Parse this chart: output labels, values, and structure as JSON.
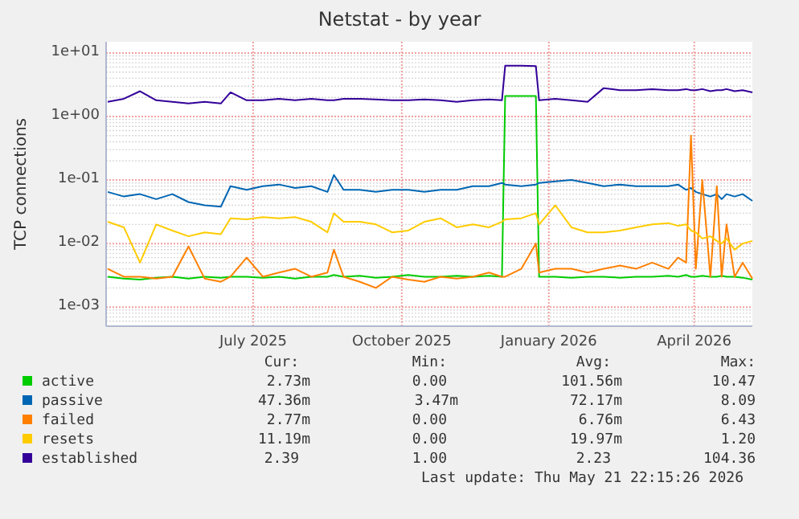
{
  "chart_data": {
    "type": "line",
    "title": "Netstat - by year",
    "ylabel": "TCP connections",
    "log": true,
    "grid": true,
    "legend": "bottom",
    "marker": "none",
    "line_style": "solid",
    "ylim": [
      0.0005,
      15
    ],
    "yticks": [
      {
        "value": 0.001,
        "label": "1e-03"
      },
      {
        "value": 0.01,
        "label": "1e-02"
      },
      {
        "value": 0.1,
        "label": "1e-01"
      },
      {
        "value": 1,
        "label": "1e+00"
      },
      {
        "value": 10,
        "label": "1e+01"
      }
    ],
    "xlim": [
      "2025-04-16",
      "2026-05-21"
    ],
    "xticks": [
      {
        "value": "2025-07-16",
        "label": "July 2025"
      },
      {
        "value": "2025-10-16",
        "label": "October 2025"
      },
      {
        "value": "2026-01-15",
        "label": "January 2026"
      },
      {
        "value": "2026-04-15",
        "label": "April 2026"
      }
    ],
    "x": [
      "2025-04-17",
      "2025-04-27",
      "2025-05-07",
      "2025-05-17",
      "2025-05-27",
      "2025-06-06",
      "2025-06-16",
      "2025-06-26",
      "2025-07-02",
      "2025-07-12",
      "2025-07-22",
      "2025-08-01",
      "2025-08-11",
      "2025-08-21",
      "2025-08-31",
      "2025-09-04",
      "2025-09-10",
      "2025-09-20",
      "2025-09-30",
      "2025-10-10",
      "2025-10-20",
      "2025-10-30",
      "2025-11-09",
      "2025-11-19",
      "2025-11-29",
      "2025-12-09",
      "2025-12-17",
      "2025-12-19",
      "2025-12-29",
      "2026-01-07",
      "2026-01-09",
      "2026-01-19",
      "2026-01-29",
      "2026-02-08",
      "2026-02-18",
      "2026-02-28",
      "2026-03-10",
      "2026-03-20",
      "2026-03-30",
      "2026-04-05",
      "2026-04-10",
      "2026-04-13",
      "2026-04-16",
      "2026-04-20",
      "2026-04-25",
      "2026-04-29",
      "2026-05-02",
      "2026-05-05",
      "2026-05-10",
      "2026-05-15",
      "2026-05-21"
    ],
    "series": [
      {
        "name": "active",
        "color": "#00cc00",
        "values": [
          0.003,
          0.0028,
          0.0027,
          0.0029,
          0.003,
          0.0028,
          0.003,
          0.0029,
          0.003,
          0.003,
          0.0029,
          0.003,
          0.0028,
          0.003,
          0.003,
          0.0032,
          0.003,
          0.0031,
          0.0029,
          0.003,
          0.0032,
          0.003,
          0.003,
          0.0031,
          0.003,
          0.0031,
          0.003,
          2.1,
          2.1,
          2.1,
          0.003,
          0.003,
          0.0029,
          0.003,
          0.003,
          0.0029,
          0.003,
          0.003,
          0.0031,
          0.003,
          0.0032,
          0.003,
          0.003,
          0.0031,
          0.003,
          0.003,
          0.0031,
          0.003,
          0.003,
          0.0029,
          0.0027
        ]
      },
      {
        "name": "passive",
        "color": "#0066b3",
        "values": [
          0.065,
          0.055,
          0.06,
          0.05,
          0.06,
          0.045,
          0.04,
          0.038,
          0.08,
          0.07,
          0.08,
          0.085,
          0.075,
          0.08,
          0.065,
          0.12,
          0.07,
          0.07,
          0.065,
          0.07,
          0.07,
          0.065,
          0.07,
          0.07,
          0.08,
          0.08,
          0.09,
          0.085,
          0.08,
          0.085,
          0.09,
          0.095,
          0.1,
          0.09,
          0.08,
          0.085,
          0.08,
          0.08,
          0.08,
          0.085,
          0.07,
          0.075,
          0.065,
          0.06,
          0.055,
          0.06,
          0.05,
          0.06,
          0.055,
          0.06,
          0.047
        ]
      },
      {
        "name": "failed",
        "color": "#ff8000",
        "values": [
          0.004,
          0.003,
          0.003,
          0.0028,
          0.003,
          0.009,
          0.0028,
          0.0025,
          0.003,
          0.006,
          0.003,
          0.0035,
          0.004,
          0.003,
          0.0035,
          0.008,
          0.003,
          0.0025,
          0.002,
          0.003,
          0.0027,
          0.0025,
          0.003,
          0.0028,
          0.003,
          0.0035,
          0.003,
          0.003,
          0.004,
          0.01,
          0.0035,
          0.004,
          0.004,
          0.0035,
          0.004,
          0.0045,
          0.004,
          0.005,
          0.004,
          0.006,
          0.005,
          0.5,
          0.004,
          0.1,
          0.003,
          0.08,
          0.003,
          0.02,
          0.003,
          0.005,
          0.0028
        ]
      },
      {
        "name": "resets",
        "color": "#ffcc00",
        "values": [
          0.022,
          0.018,
          0.005,
          0.02,
          0.016,
          0.013,
          0.015,
          0.014,
          0.025,
          0.024,
          0.026,
          0.025,
          0.026,
          0.022,
          0.015,
          0.03,
          0.022,
          0.022,
          0.02,
          0.015,
          0.016,
          0.022,
          0.025,
          0.018,
          0.02,
          0.018,
          0.022,
          0.024,
          0.025,
          0.03,
          0.02,
          0.04,
          0.018,
          0.015,
          0.015,
          0.016,
          0.018,
          0.02,
          0.021,
          0.019,
          0.02,
          0.016,
          0.015,
          0.012,
          0.013,
          0.011,
          0.01,
          0.012,
          0.008,
          0.01,
          0.011
        ]
      },
      {
        "name": "established",
        "color": "#330099",
        "values": [
          1.7,
          1.9,
          2.5,
          1.8,
          1.7,
          1.6,
          1.7,
          1.6,
          2.4,
          1.8,
          1.8,
          1.9,
          1.8,
          1.9,
          1.8,
          1.8,
          1.9,
          1.9,
          1.85,
          1.8,
          1.8,
          1.85,
          1.8,
          1.7,
          1.8,
          1.85,
          1.8,
          6.3,
          6.3,
          6.2,
          1.8,
          1.9,
          1.8,
          1.7,
          2.8,
          2.6,
          2.6,
          2.7,
          2.6,
          2.6,
          2.7,
          2.6,
          2.6,
          2.7,
          2.5,
          2.6,
          2.6,
          2.7,
          2.5,
          2.6,
          2.39
        ]
      }
    ],
    "annotations": [
      "Cur:",
      "Min:",
      "Avg:",
      "Max:",
      "2.73m",
      "0.00",
      "101.56m",
      "10.47",
      "47.36m",
      "3.47m",
      "72.17m",
      "8.09",
      "2.77m",
      "0.00",
      "6.76m",
      "6.43",
      "11.19m",
      "0.00",
      "19.97m",
      "1.20",
      "2.39",
      "1.00",
      "2.23",
      "104.36",
      "Last update: Thu May 21 22:15:26 2026"
    ]
  }
}
